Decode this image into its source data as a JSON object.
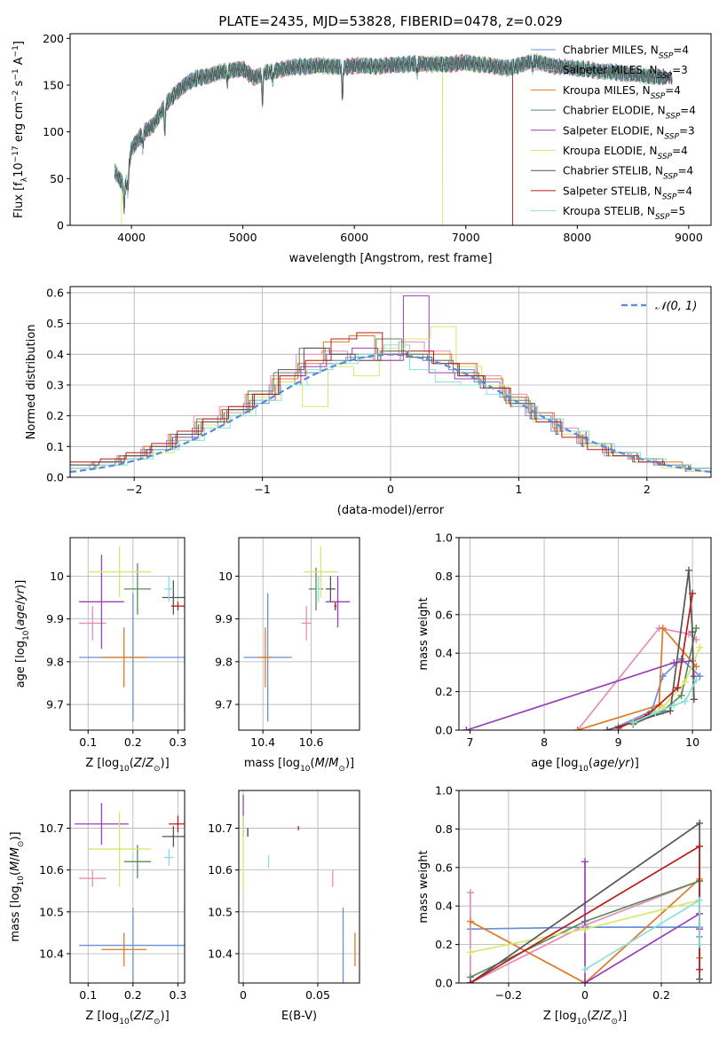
{
  "figure_title": "PLATE=2435, MJD=53828, FIBERID=0478, z=0.029",
  "colors": {
    "series": [
      "#6b8fd6",
      "#e88cb8",
      "#dd7a22",
      "#5a8a5a",
      "#9a3fb8",
      "#d6e86a",
      "#555555",
      "#b81c1c",
      "#88e0d8"
    ],
    "axes": "#000000",
    "grid": "#b0b0b0",
    "gaussian": "#5b8ad6"
  },
  "chart_data": [
    {
      "id": "spectrum",
      "type": "line",
      "title": "PLATE=2435, MJD=53828, FIBERID=0478, z=0.029",
      "xlabel": "wavelength [Angstrom, rest frame]",
      "ylabel": "Flux [f_λ 10^-17 erg cm^-2 s^-1 A^-1]",
      "xlim": [
        3450,
        9200
      ],
      "ylim": [
        0,
        205
      ],
      "xticks": [
        4000,
        5000,
        6000,
        7000,
        8000,
        9000
      ],
      "yticks": [
        0,
        50,
        100,
        150,
        200
      ],
      "grid": false,
      "legend_position": "top-right",
      "series": [
        {
          "name": "Chabrier MILES, N_SSP=4"
        },
        {
          "name": "Salpeter MILES, N_SSP=3"
        },
        {
          "name": "Kroupa MILES, N_SSP=4"
        },
        {
          "name": "Chabrier ELODIE, N_SSP=4"
        },
        {
          "name": "Salpeter ELODIE, N_SSP=3"
        },
        {
          "name": "Kroupa ELODIE, N_SSP=4"
        },
        {
          "name": "Chabrier STELIB, N_SSP=4"
        },
        {
          "name": "Salpeter STELIB, N_SSP=4"
        },
        {
          "name": "Kroupa STELIB, N_SSP=5"
        }
      ],
      "continuum": {
        "x": [
          3850,
          3900,
          3950,
          4000,
          4100,
          4200,
          4300,
          4400,
          4500,
          4600,
          4700,
          4800,
          4900,
          5000,
          5100,
          5200,
          5300,
          5400,
          5500,
          5600,
          5700,
          5800,
          5900,
          6000,
          6200,
          6400,
          6600,
          6800,
          7000,
          7200,
          7400,
          7600,
          7800,
          8000,
          8200,
          8400,
          8600,
          8800
        ],
        "y": [
          58,
          48,
          42,
          82,
          98,
          108,
          128,
          142,
          152,
          158,
          160,
          164,
          166,
          167,
          158,
          163,
          166,
          168,
          170,
          170,
          171,
          170,
          169,
          171,
          170,
          172,
          173,
          172,
          174,
          171,
          168,
          176,
          170,
          168,
          165,
          163,
          160,
          158
        ]
      },
      "dips": [
        {
          "x": 3934,
          "depth": 25
        },
        {
          "x": 3969,
          "depth": 20
        },
        {
          "x": 4102,
          "depth": 15
        },
        {
          "x": 4300,
          "depth": 28
        },
        {
          "x": 4861,
          "depth": 12
        },
        {
          "x": 5175,
          "depth": 30
        },
        {
          "x": 5270,
          "depth": 10
        },
        {
          "x": 5893,
          "depth": 32
        },
        {
          "x": 6563,
          "depth": 10
        },
        {
          "x": 7600,
          "depth": 8
        }
      ],
      "cutoffs": [
        {
          "series": "Kroupa ELODIE, N_SSP=4",
          "x": 3910
        },
        {
          "series": "Kroupa ELODIE, N_SSP=4",
          "x": 6790
        },
        {
          "series": "Salpeter STELIB, N_SSP=4",
          "x": 7420
        },
        {
          "series": "Kroupa MILES, N_SSP=4",
          "x": 7420
        }
      ]
    },
    {
      "id": "residual-histogram",
      "type": "line",
      "xlabel": "(data-model)/error",
      "ylabel": "Normed distribution",
      "xlim": [
        -2.5,
        2.5
      ],
      "ylim": [
        0,
        0.62
      ],
      "xticks": [
        -2,
        -1,
        0,
        1,
        2
      ],
      "yticks": [
        0.0,
        0.1,
        0.2,
        0.3,
        0.4,
        0.5,
        0.6
      ],
      "grid": true,
      "legend_position": "top-right",
      "reference": {
        "name": "𝒩(0, 1)",
        "mean": 0,
        "sigma": 1
      },
      "bin_edges": [
        -2.5,
        -2.3,
        -2.1,
        -1.9,
        -1.7,
        -1.5,
        -1.3,
        -1.1,
        -0.9,
        -0.7,
        -0.5,
        -0.3,
        -0.1,
        0.1,
        0.3,
        0.5,
        0.7,
        0.9,
        1.1,
        1.3,
        1.5,
        1.7,
        1.9,
        2.1,
        2.3,
        2.5
      ],
      "series": [
        {
          "values": [
            0.03,
            0.04,
            0.06,
            0.09,
            0.12,
            0.16,
            0.2,
            0.24,
            0.3,
            0.34,
            0.37,
            0.39,
            0.4,
            0.4,
            0.38,
            0.35,
            0.31,
            0.26,
            0.2,
            0.15,
            0.11,
            0.08,
            0.06,
            0.04,
            0.03
          ]
        },
        {
          "values": [
            0.04,
            0.05,
            0.07,
            0.1,
            0.14,
            0.2,
            0.23,
            0.27,
            0.33,
            0.4,
            0.41,
            0.38,
            0.4,
            0.44,
            0.41,
            0.37,
            0.33,
            0.27,
            0.21,
            0.16,
            0.11,
            0.07,
            0.06,
            0.04,
            0.03
          ]
        },
        {
          "values": [
            0.04,
            0.05,
            0.07,
            0.1,
            0.14,
            0.18,
            0.22,
            0.27,
            0.32,
            0.37,
            0.44,
            0.46,
            0.38,
            0.4,
            0.4,
            0.37,
            0.32,
            0.26,
            0.21,
            0.15,
            0.11,
            0.08,
            0.06,
            0.05,
            0.03
          ]
        },
        {
          "values": [
            0.03,
            0.05,
            0.07,
            0.09,
            0.14,
            0.19,
            0.22,
            0.28,
            0.34,
            0.42,
            0.38,
            0.4,
            0.45,
            0.4,
            0.38,
            0.34,
            0.3,
            0.25,
            0.19,
            0.14,
            0.1,
            0.07,
            0.05,
            0.04,
            0.03
          ]
        },
        {
          "values": [
            0.03,
            0.04,
            0.06,
            0.09,
            0.13,
            0.17,
            0.21,
            0.25,
            0.3,
            0.36,
            0.4,
            0.42,
            0.38,
            0.59,
            0.34,
            0.32,
            0.29,
            0.24,
            0.19,
            0.14,
            0.1,
            0.07,
            0.05,
            0.04,
            0.02
          ]
        },
        {
          "values": [
            0.03,
            0.04,
            0.06,
            0.08,
            0.12,
            0.17,
            0.21,
            0.26,
            0.31,
            0.23,
            0.36,
            0.33,
            0.42,
            0.45,
            0.49,
            0.36,
            0.3,
            0.24,
            0.18,
            0.14,
            0.1,
            0.07,
            0.05,
            0.03,
            0.02
          ]
        },
        {
          "values": [
            0.04,
            0.05,
            0.07,
            0.1,
            0.14,
            0.18,
            0.22,
            0.27,
            0.35,
            0.42,
            0.4,
            0.38,
            0.41,
            0.39,
            0.37,
            0.33,
            0.29,
            0.24,
            0.19,
            0.15,
            0.11,
            0.08,
            0.06,
            0.04,
            0.03
          ]
        },
        {
          "values": [
            0.05,
            0.06,
            0.08,
            0.11,
            0.15,
            0.19,
            0.23,
            0.27,
            0.33,
            0.38,
            0.45,
            0.47,
            0.4,
            0.41,
            0.37,
            0.33,
            0.29,
            0.23,
            0.18,
            0.13,
            0.09,
            0.07,
            0.05,
            0.04,
            0.03
          ]
        },
        {
          "values": [
            0.03,
            0.04,
            0.06,
            0.09,
            0.12,
            0.16,
            0.2,
            0.25,
            0.3,
            0.35,
            0.37,
            0.4,
            0.43,
            0.35,
            0.31,
            0.3,
            0.27,
            0.23,
            0.19,
            0.15,
            0.11,
            0.08,
            0.06,
            0.04,
            0.03
          ]
        }
      ]
    },
    {
      "id": "age-vs-Z",
      "type": "scatter",
      "xlabel": "Z [log10(Z/Z⊙)]",
      "ylabel": "age [log10(age/yr)]",
      "xlim": [
        0.06,
        0.315
      ],
      "ylim": [
        9.64,
        10.09
      ],
      "xticks": [
        0.1,
        0.2,
        0.3
      ],
      "yticks": [
        9.7,
        9.8,
        9.9,
        10.0
      ],
      "grid": true,
      "points": [
        {
          "x": 0.2,
          "y": 9.81,
          "xerr": 0.12,
          "yerr": 0.15
        },
        {
          "x": 0.11,
          "y": 9.89,
          "xerr": 0.03,
          "yerr": 0.04
        },
        {
          "x": 0.18,
          "y": 9.81,
          "xerr": 0.05,
          "yerr": 0.07
        },
        {
          "x": 0.21,
          "y": 9.97,
          "xerr": 0.03,
          "yerr": 0.06
        },
        {
          "x": 0.13,
          "y": 9.94,
          "xerr": 0.05,
          "yerr": 0.11
        },
        {
          "x": 0.17,
          "y": 10.01,
          "xerr": 0.07,
          "yerr": 0.06
        },
        {
          "x": 0.29,
          "y": 9.95,
          "xerr": 0.025,
          "yerr": 0.04
        },
        {
          "x": 0.3,
          "y": 9.93,
          "xerr": 0.015,
          "yerr": 0.01
        },
        {
          "x": 0.28,
          "y": 9.97,
          "xerr": 0.01,
          "yerr": 0.03
        }
      ]
    },
    {
      "id": "age-vs-mass",
      "type": "scatter",
      "xlabel": "mass [log10(M/M⊙)]",
      "ylabel": "",
      "xlim": [
        10.3,
        10.8
      ],
      "ylim": [
        9.64,
        10.09
      ],
      "xticks": [
        10.4,
        10.6
      ],
      "yticks": [
        9.7,
        9.8,
        9.9,
        10.0
      ],
      "grid": true,
      "points": [
        {
          "x": 10.42,
          "y": 9.81,
          "xerr": 0.1,
          "yerr": 0.15
        },
        {
          "x": 10.58,
          "y": 9.89,
          "xerr": 0.02,
          "yerr": 0.04
        },
        {
          "x": 10.41,
          "y": 9.81,
          "xerr": 0.03,
          "yerr": 0.07
        },
        {
          "x": 10.62,
          "y": 9.97,
          "xerr": 0.03,
          "yerr": 0.05
        },
        {
          "x": 10.71,
          "y": 9.94,
          "xerr": 0.05,
          "yerr": 0.06
        },
        {
          "x": 10.64,
          "y": 10.01,
          "xerr": 0.07,
          "yerr": 0.06
        },
        {
          "x": 10.68,
          "y": 9.97,
          "xerr": 0.02,
          "yerr": 0.03
        },
        {
          "x": 10.7,
          "y": 9.93,
          "xerr": 0.005,
          "yerr": 0.01
        },
        {
          "x": 10.63,
          "y": 9.97,
          "xerr": 0.01,
          "yerr": 0.03
        }
      ]
    },
    {
      "id": "mass-weight-vs-age",
      "type": "line",
      "xlabel": "age [log10(age/yr)]",
      "ylabel": "mass weight",
      "xlim": [
        6.85,
        10.25
      ],
      "ylim": [
        0,
        1.0
      ],
      "xticks": [
        7,
        8,
        9,
        10
      ],
      "yticks": [
        0.0,
        0.2,
        0.4,
        0.6,
        0.8,
        1.0
      ],
      "grid": true,
      "series": [
        {
          "x": [
            9.0,
            9.45,
            9.6,
            9.85,
            10.1
          ],
          "y": [
            0.02,
            0.1,
            0.28,
            0.37,
            0.28
          ]
        },
        {
          "x": [
            8.45,
            9.55,
            9.95,
            10.05
          ],
          "y": [
            0.0,
            0.53,
            0.5,
            0.47
          ]
        },
        {
          "x": [
            8.45,
            9.55,
            9.6,
            10.05
          ],
          "y": [
            0.0,
            0.13,
            0.53,
            0.33
          ]
        },
        {
          "x": [
            9.2,
            9.6,
            9.85,
            10.05
          ],
          "y": [
            0.03,
            0.1,
            0.18,
            0.53
          ]
        },
        {
          "x": [
            6.95,
            9.75,
            10.0,
            10.02
          ],
          "y": [
            0.0,
            0.35,
            0.36,
            0.28
          ]
        },
        {
          "x": [
            9.2,
            9.6,
            9.9,
            10.1
          ],
          "y": [
            0.04,
            0.12,
            0.25,
            0.43
          ]
        },
        {
          "x": [
            8.85,
            9.7,
            9.95,
            10.0,
            10.02
          ],
          "y": [
            0.0,
            0.1,
            0.83,
            0.51,
            0.16
          ]
        },
        {
          "x": [
            9.0,
            9.4,
            9.8,
            10.0
          ],
          "y": [
            0.01,
            0.08,
            0.22,
            0.71
          ]
        },
        {
          "x": [
            9.2,
            9.5,
            9.75,
            9.9,
            10.05
          ],
          "y": [
            0.04,
            0.09,
            0.13,
            0.15,
            0.26
          ]
        }
      ]
    },
    {
      "id": "mass-vs-Z",
      "type": "scatter",
      "xlabel": "Z [log10(Z/Z⊙)]",
      "ylabel": "mass [log10(M/M⊙)]",
      "xlim": [
        0.06,
        0.315
      ],
      "ylim": [
        10.33,
        10.79
      ],
      "xticks": [
        0.1,
        0.2,
        0.3
      ],
      "yticks": [
        10.4,
        10.5,
        10.6,
        10.7
      ],
      "grid": true,
      "points": [
        {
          "x": 0.2,
          "y": 10.42,
          "xerr": 0.12,
          "yerr": 0.09
        },
        {
          "x": 0.11,
          "y": 10.58,
          "xerr": 0.03,
          "yerr": 0.02
        },
        {
          "x": 0.18,
          "y": 10.41,
          "xerr": 0.05,
          "yerr": 0.04
        },
        {
          "x": 0.21,
          "y": 10.62,
          "xerr": 0.03,
          "yerr": 0.04
        },
        {
          "x": 0.13,
          "y": 10.71,
          "xerr": 0.06,
          "yerr": 0.05
        },
        {
          "x": 0.17,
          "y": 10.65,
          "xerr": 0.07,
          "yerr": 0.09
        },
        {
          "x": 0.29,
          "y": 10.68,
          "xerr": 0.025,
          "yerr": 0.025
        },
        {
          "x": 0.3,
          "y": 10.71,
          "xerr": 0.02,
          "yerr": 0.02
        },
        {
          "x": 0.28,
          "y": 10.63,
          "xerr": 0.01,
          "yerr": 0.02
        }
      ]
    },
    {
      "id": "mass-vs-ebv",
      "type": "scatter",
      "xlabel": "E(B-V)",
      "ylabel": "",
      "xlim": [
        -0.003,
        0.078
      ],
      "ylim": [
        10.33,
        10.79
      ],
      "xticks": [
        0.0,
        0.05
      ],
      "yticks": [
        10.4,
        10.5,
        10.6,
        10.7
      ],
      "grid": true,
      "points": [
        {
          "x": 0.067,
          "y": 10.42,
          "yerr": 0.09
        },
        {
          "x": 0.06,
          "y": 10.58,
          "yerr": 0.02
        },
        {
          "x": 0.075,
          "y": 10.41,
          "yerr": 0.04
        },
        {
          "x": 0.003,
          "y": 10.69,
          "yerr": 0.01
        },
        {
          "x": 0.0,
          "y": 10.73,
          "yerr": 0.05
        },
        {
          "x": 0.0,
          "y": 10.64,
          "yerr": 0.09
        },
        {
          "x": 0.003,
          "y": 10.69,
          "yerr": 0.01
        },
        {
          "x": 0.037,
          "y": 10.7,
          "yerr": 0.005
        },
        {
          "x": 0.017,
          "y": 10.62,
          "yerr": 0.015
        }
      ]
    },
    {
      "id": "mass-weight-vs-Z",
      "type": "line",
      "xlabel": "Z [log10(Z/Z⊙)]",
      "ylabel": "mass weight",
      "xlim": [
        -0.33,
        0.33
      ],
      "ylim": [
        0,
        1.0
      ],
      "xticks": [
        -0.2,
        0.0,
        0.2
      ],
      "yticks": [
        0.0,
        0.2,
        0.4,
        0.6,
        0.8,
        1.0
      ],
      "grid": true,
      "series": [
        {
          "x": [
            -0.3,
            0.0,
            0.0,
            0.3,
            0.3
          ],
          "y": [
            0.28,
            0.29,
            0.29,
            0.29,
            0.24
          ]
        },
        {
          "x": [
            -0.3,
            -0.3,
            0.0,
            0.3
          ],
          "y": [
            0.47,
            0.0,
            0.3,
            0.53
          ]
        },
        {
          "x": [
            -0.3,
            0.0,
            0.3,
            0.3
          ],
          "y": [
            0.32,
            0.0,
            0.54,
            0.13
          ]
        },
        {
          "x": [
            -0.3,
            0.0,
            0.3
          ],
          "y": [
            0.03,
            0.32,
            0.53
          ]
        },
        {
          "x": [
            0.0,
            0.0,
            0.3,
            0.3
          ],
          "y": [
            0.63,
            0.0,
            0.36,
            0.28
          ]
        },
        {
          "x": [
            -0.3,
            0.0,
            0.3
          ],
          "y": [
            0.16,
            0.28,
            0.43
          ]
        },
        {
          "x": [
            -0.3,
            0.3,
            0.3
          ],
          "y": [
            0.0,
            0.83,
            0.02
          ]
        },
        {
          "x": [
            -0.3,
            0.3,
            0.3
          ],
          "y": [
            0.0,
            0.71,
            0.07
          ]
        },
        {
          "x": [
            0.0,
            0.3,
            0.3
          ],
          "y": [
            0.07,
            0.43,
            0.2
          ]
        }
      ]
    }
  ]
}
